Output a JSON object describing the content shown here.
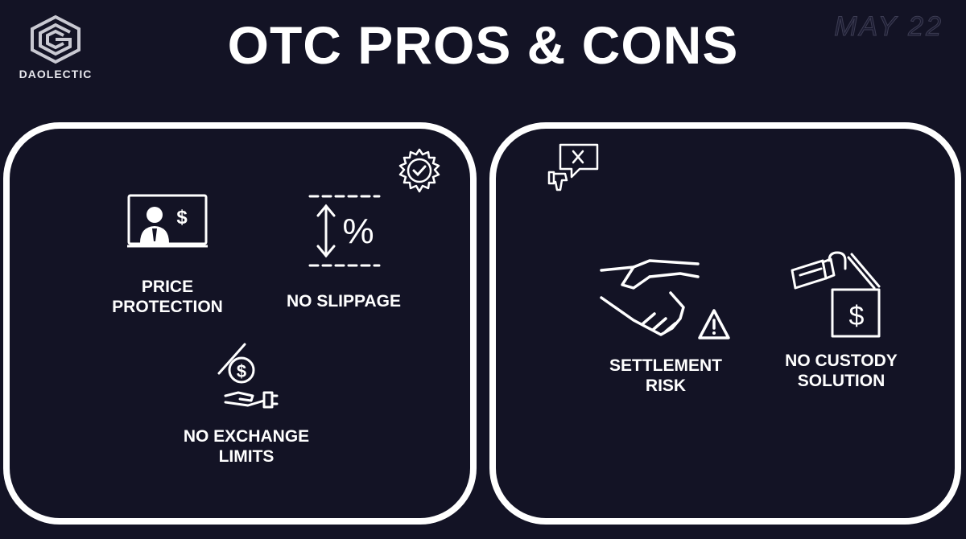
{
  "brand": {
    "name": "DAOLECTIC"
  },
  "header": {
    "title": "OTC PROS & CONS",
    "date": "MAY 22"
  },
  "pros": {
    "badge_icon": "gear-check-icon",
    "items": [
      {
        "line1": "PRICE",
        "line2": "PROTECTION",
        "icon": "presenter-dollar-icon"
      },
      {
        "line1": "NO SLIPPAGE",
        "line2": "",
        "icon": "percent-arrows-icon"
      },
      {
        "line1": "NO EXCHANGE",
        "line2": "LIMITS",
        "icon": "hand-coin-icon"
      }
    ]
  },
  "cons": {
    "badge_icon": "thumbs-down-x-icon",
    "items": [
      {
        "line1": "SETTLEMENT",
        "line2": "RISK",
        "icon": "handshake-warning-icon"
      },
      {
        "line1": "NO CUSTODY",
        "line2": "SOLUTION",
        "icon": "unlocked-box-icon"
      }
    ]
  }
}
